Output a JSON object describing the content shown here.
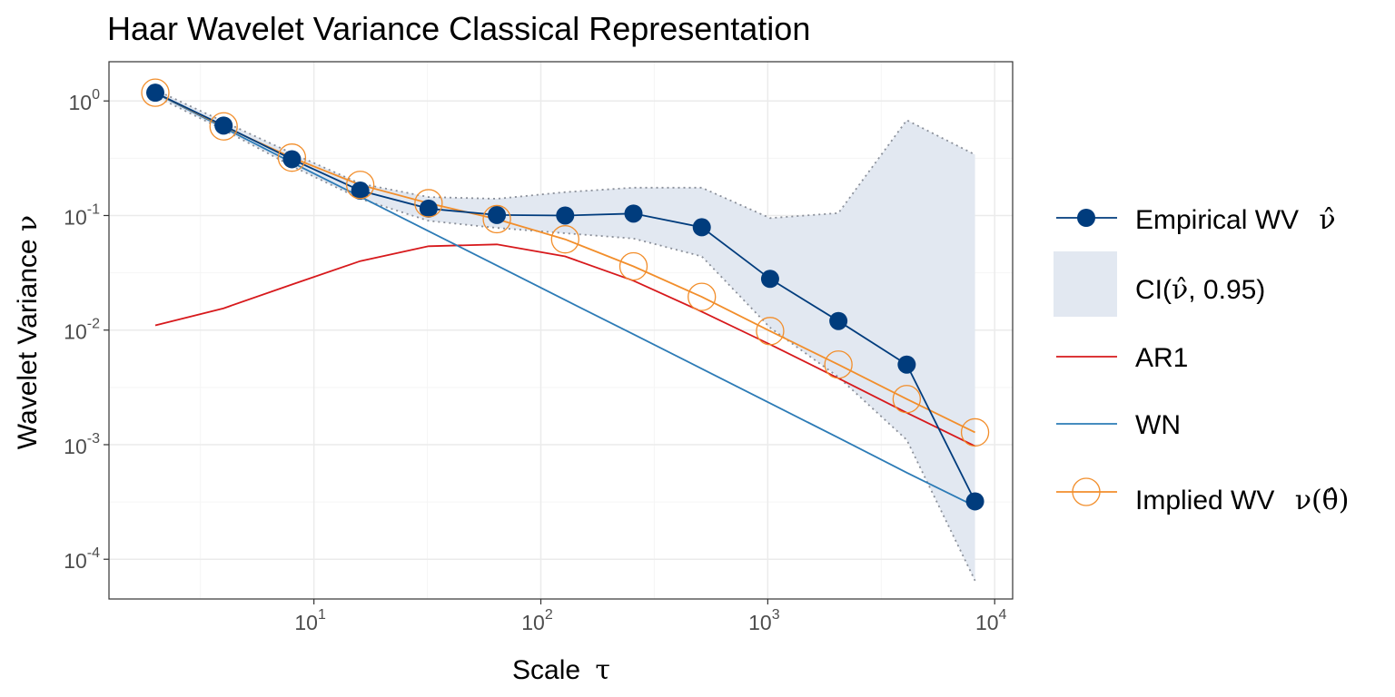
{
  "chart_data": {
    "type": "line",
    "title": "Haar Wavelet Variance Classical Representation",
    "xlabel": "Scale",
    "xlabel_symbol": "τ",
    "ylabel": "Wavelet Variance",
    "ylabel_symbol": "ν",
    "x_scale": "log10",
    "y_scale": "log10",
    "xlim": [
      1.25,
      12000
    ],
    "ylim": [
      4.5e-05,
      2.2
    ],
    "x_ticks": [
      {
        "base": "10",
        "exp": "1",
        "value": 10
      },
      {
        "base": "10",
        "exp": "2",
        "value": 100
      },
      {
        "base": "10",
        "exp": "3",
        "value": 1000
      },
      {
        "base": "10",
        "exp": "4",
        "value": 10000
      }
    ],
    "y_ticks": [
      {
        "base": "10",
        "exp": "0",
        "value": 1
      },
      {
        "base": "10",
        "exp": "-1",
        "value": 0.1
      },
      {
        "base": "10",
        "exp": "-2",
        "value": 0.01
      },
      {
        "base": "10",
        "exp": "-3",
        "value": 0.001
      },
      {
        "base": "10",
        "exp": "-4",
        "value": 0.0001
      }
    ],
    "grid": true,
    "legend_position": "right",
    "x": [
      2,
      4,
      8,
      16,
      32,
      64,
      128,
      256,
      512,
      1024,
      2048,
      4096,
      8192
    ],
    "series": [
      {
        "name": "Empirical WV",
        "symbol": "ν̂",
        "color": "#003c7d",
        "style": "line-points",
        "values": [
          1.18,
          0.61,
          0.31,
          0.165,
          0.115,
          0.101,
          0.1,
          0.104,
          0.079,
          0.028,
          0.012,
          0.005,
          0.00032
        ]
      },
      {
        "name": "CI",
        "symbol_text": "(ν̂, 0.95)",
        "color": "#e2e8f1",
        "style": "band",
        "lower": [
          1.1,
          0.56,
          0.27,
          0.14,
          0.09,
          0.078,
          0.07,
          0.063,
          0.044,
          0.0105,
          0.0039,
          0.0011,
          6.5e-05
        ],
        "upper": [
          1.25,
          0.66,
          0.35,
          0.19,
          0.145,
          0.14,
          0.16,
          0.175,
          0.175,
          0.095,
          0.105,
          0.68,
          0.34
        ]
      },
      {
        "name": "AR1",
        "color": "#d7191c",
        "style": "line",
        "values": [
          0.011,
          0.0155,
          0.025,
          0.04,
          0.054,
          0.056,
          0.044,
          0.027,
          0.0145,
          0.0075,
          0.0038,
          0.0019,
          0.00097
        ]
      },
      {
        "name": "WN",
        "color": "#2c7bb6",
        "style": "line",
        "values": [
          1.17,
          0.585,
          0.29,
          0.146,
          0.073,
          0.0366,
          0.0183,
          0.0092,
          0.0046,
          0.0023,
          0.00115,
          0.00057,
          0.00029
        ]
      },
      {
        "name": "Implied WV",
        "symbol": "ν(θ̂)",
        "color": "#f28e2b",
        "style": "line-open-points",
        "values": [
          1.18,
          0.6,
          0.32,
          0.185,
          0.128,
          0.093,
          0.062,
          0.036,
          0.0195,
          0.0098,
          0.005,
          0.0025,
          0.00128
        ]
      }
    ]
  },
  "legend": {
    "empirical_label": "Empirical WV",
    "empirical_symbol": "ν̂",
    "ci_prefix": "CI(",
    "ci_symbol": "ν̂",
    "ci_suffix": ", 0.95)",
    "ar1_label": "AR1",
    "wn_label": "WN",
    "implied_label": "Implied WV",
    "implied_symbol": "ν(θ̂)"
  },
  "colors": {
    "panel_border": "#333333",
    "grid_major": "#ebebeb",
    "grid_minor": "#f5f5f5",
    "ci_border": "#8a8f99"
  }
}
